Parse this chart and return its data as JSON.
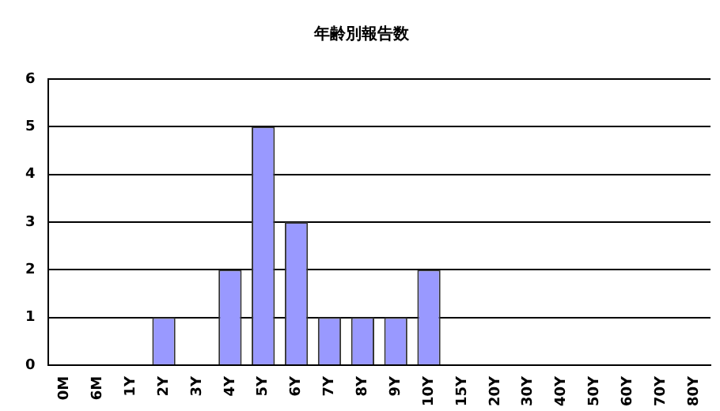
{
  "chart_data": {
    "type": "bar",
    "title": "年齢別報告数",
    "categories": [
      "0M",
      "6M",
      "1Y",
      "2Y",
      "3Y",
      "4Y",
      "5Y",
      "6Y",
      "7Y",
      "8Y",
      "9Y",
      "10Y",
      "15Y",
      "20Y",
      "30Y",
      "40Y",
      "50Y",
      "60Y",
      "70Y",
      "80Y"
    ],
    "values": [
      0,
      0,
      0,
      1,
      0,
      2,
      5,
      3,
      1,
      1,
      1,
      2,
      0,
      0,
      0,
      0,
      0,
      0,
      0,
      0
    ],
    "color": "#9999ff",
    "ylim": [
      0,
      6
    ],
    "yticks": [
      0,
      1,
      2,
      3,
      4,
      5,
      6
    ],
    "grid": "y",
    "legend": false
  }
}
